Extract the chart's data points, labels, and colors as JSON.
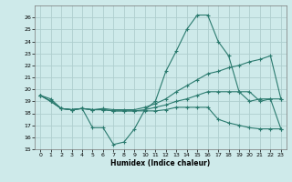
{
  "xlabel": "Humidex (Indice chaleur)",
  "bg_color": "#ceeaea",
  "grid_color": "#aecece",
  "line_color": "#2a7a6e",
  "xlim": [
    -0.5,
    23.5
  ],
  "ylim": [
    15,
    27
  ],
  "yticks": [
    15,
    16,
    17,
    18,
    19,
    20,
    21,
    22,
    23,
    24,
    25,
    26
  ],
  "xticks": [
    0,
    1,
    2,
    3,
    4,
    5,
    6,
    7,
    8,
    9,
    10,
    11,
    12,
    13,
    14,
    15,
    16,
    17,
    18,
    19,
    20,
    21,
    22,
    23
  ],
  "series": [
    {
      "x": [
        0,
        1,
        2,
        3,
        4,
        5,
        6,
        7,
        8,
        9,
        10,
        11,
        12,
        13,
        14,
        15,
        16,
        17,
        18,
        19,
        20,
        21,
        22,
        23
      ],
      "y": [
        19.5,
        19.2,
        18.4,
        18.3,
        18.4,
        16.8,
        16.8,
        15.4,
        15.6,
        16.7,
        18.3,
        19.0,
        21.5,
        23.2,
        25.0,
        26.2,
        26.2,
        24.0,
        22.8,
        19.8,
        19.0,
        19.2,
        19.2,
        19.2
      ]
    },
    {
      "x": [
        0,
        1,
        2,
        3,
        4,
        5,
        6,
        7,
        8,
        9,
        10,
        11,
        12,
        13,
        14,
        15,
        16,
        17,
        18,
        19,
        20,
        21,
        22,
        23
      ],
      "y": [
        19.5,
        19.0,
        18.4,
        18.3,
        18.4,
        18.3,
        18.4,
        18.3,
        18.3,
        18.3,
        18.5,
        18.8,
        19.2,
        19.8,
        20.3,
        20.8,
        21.3,
        21.5,
        21.8,
        22.0,
        22.3,
        22.5,
        22.8,
        19.2
      ]
    },
    {
      "x": [
        0,
        1,
        2,
        3,
        4,
        5,
        6,
        7,
        8,
        9,
        10,
        11,
        12,
        13,
        14,
        15,
        16,
        17,
        18,
        19,
        20,
        21,
        22,
        23
      ],
      "y": [
        19.5,
        19.0,
        18.4,
        18.3,
        18.4,
        18.3,
        18.3,
        18.2,
        18.2,
        18.2,
        18.2,
        18.2,
        18.3,
        18.5,
        18.5,
        18.5,
        18.5,
        17.5,
        17.2,
        17.0,
        16.8,
        16.7,
        16.7,
        16.7
      ]
    },
    {
      "x": [
        0,
        1,
        2,
        3,
        4,
        5,
        6,
        7,
        8,
        9,
        10,
        11,
        12,
        13,
        14,
        15,
        16,
        17,
        18,
        19,
        20,
        21,
        22,
        23
      ],
      "y": [
        19.5,
        19.0,
        18.4,
        18.3,
        18.4,
        18.3,
        18.3,
        18.2,
        18.2,
        18.2,
        18.3,
        18.5,
        18.7,
        19.0,
        19.2,
        19.5,
        19.8,
        19.8,
        19.8,
        19.8,
        19.8,
        19.0,
        19.2,
        16.7
      ]
    }
  ]
}
